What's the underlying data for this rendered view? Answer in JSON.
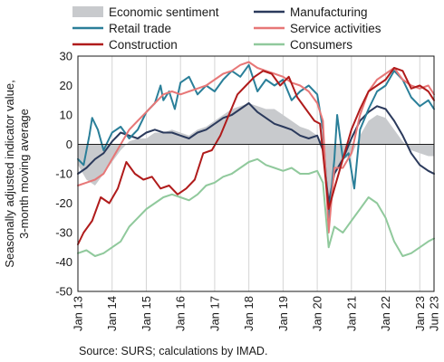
{
  "chart_data": {
    "type": "line",
    "ylabel_lines": [
      "Seasonally adjusted indicator value,",
      "3-month moving average"
    ],
    "source": "Source: SURS; calculations by IMAD.",
    "ylim": [
      -50,
      30
    ],
    "yticks": [
      30,
      20,
      10,
      0,
      -10,
      -20,
      -30,
      -40,
      -50
    ],
    "xlim": [
      "2013-01",
      "2023-06"
    ],
    "xticks": [
      {
        "label": "Jan 13",
        "date": "2013-01"
      },
      {
        "label": "Jan 14",
        "date": "2014-01"
      },
      {
        "label": "Jan 15",
        "date": "2015-01"
      },
      {
        "label": "Jan 16",
        "date": "2016-01"
      },
      {
        "label": "Jan 17",
        "date": "2017-01"
      },
      {
        "label": "Jan 18",
        "date": "2018-01"
      },
      {
        "label": "Jan 19",
        "date": "2019-01"
      },
      {
        "label": "Jan 20",
        "date": "2020-01"
      },
      {
        "label": "Jan 21",
        "date": "2021-01"
      },
      {
        "label": "Jan 22",
        "date": "2022-01"
      },
      {
        "label": "Jan 23",
        "date": "2023-01"
      },
      {
        "label": "Jun 23",
        "date": "2023-06"
      }
    ],
    "grid": "vertical",
    "legend_placement": "top",
    "series": [
      {
        "name": "Economic sentiment",
        "kind": "area",
        "color": "#c8cacd",
        "points": [
          [
            "2013-01",
            -7
          ],
          [
            "2013-04",
            -12
          ],
          [
            "2013-07",
            -14
          ],
          [
            "2013-10",
            -10
          ],
          [
            "2014-01",
            -6
          ],
          [
            "2014-04",
            -2
          ],
          [
            "2014-07",
            1
          ],
          [
            "2014-10",
            2
          ],
          [
            "2015-01",
            2
          ],
          [
            "2015-04",
            4
          ],
          [
            "2015-07",
            4
          ],
          [
            "2015-10",
            5
          ],
          [
            "2016-01",
            4
          ],
          [
            "2016-04",
            3
          ],
          [
            "2016-07",
            5
          ],
          [
            "2016-10",
            6
          ],
          [
            "2017-01",
            8
          ],
          [
            "2017-04",
            10
          ],
          [
            "2017-07",
            12
          ],
          [
            "2017-10",
            13
          ],
          [
            "2018-01",
            14
          ],
          [
            "2018-04",
            13
          ],
          [
            "2018-07",
            12
          ],
          [
            "2018-10",
            12
          ],
          [
            "2019-01",
            10
          ],
          [
            "2019-04",
            8
          ],
          [
            "2019-07",
            6
          ],
          [
            "2019-10",
            5
          ],
          [
            "2020-01",
            3
          ],
          [
            "2020-03",
            0
          ],
          [
            "2020-05",
            -30
          ],
          [
            "2020-07",
            -10
          ],
          [
            "2020-10",
            -5
          ],
          [
            "2021-01",
            -4
          ],
          [
            "2021-04",
            3
          ],
          [
            "2021-07",
            8
          ],
          [
            "2021-10",
            10
          ],
          [
            "2022-01",
            9
          ],
          [
            "2022-04",
            5
          ],
          [
            "2022-07",
            1
          ],
          [
            "2022-10",
            -2
          ],
          [
            "2023-01",
            -3
          ],
          [
            "2023-04",
            -4
          ],
          [
            "2023-06",
            -4
          ]
        ]
      },
      {
        "name": "Manufacturing",
        "kind": "line",
        "color": "#2b3a5c",
        "points": [
          [
            "2013-01",
            -10
          ],
          [
            "2013-04",
            -8
          ],
          [
            "2013-07",
            -5
          ],
          [
            "2013-10",
            -3
          ],
          [
            "2014-01",
            1
          ],
          [
            "2014-04",
            4
          ],
          [
            "2014-07",
            3
          ],
          [
            "2014-10",
            2
          ],
          [
            "2015-01",
            4
          ],
          [
            "2015-04",
            5
          ],
          [
            "2015-07",
            4
          ],
          [
            "2015-10",
            4
          ],
          [
            "2016-01",
            3
          ],
          [
            "2016-04",
            2
          ],
          [
            "2016-07",
            4
          ],
          [
            "2016-10",
            5
          ],
          [
            "2017-01",
            7
          ],
          [
            "2017-04",
            9
          ],
          [
            "2017-07",
            10
          ],
          [
            "2017-10",
            12
          ],
          [
            "2018-01",
            14
          ],
          [
            "2018-04",
            11
          ],
          [
            "2018-07",
            9
          ],
          [
            "2018-10",
            7
          ],
          [
            "2019-01",
            6
          ],
          [
            "2019-04",
            5
          ],
          [
            "2019-07",
            3
          ],
          [
            "2019-10",
            2
          ],
          [
            "2020-01",
            3
          ],
          [
            "2020-03",
            -2
          ],
          [
            "2020-05",
            -20
          ],
          [
            "2020-07",
            -10
          ],
          [
            "2020-10",
            -5
          ],
          [
            "2021-01",
            2
          ],
          [
            "2021-04",
            8
          ],
          [
            "2021-07",
            11
          ],
          [
            "2021-10",
            13
          ],
          [
            "2022-01",
            12
          ],
          [
            "2022-04",
            8
          ],
          [
            "2022-07",
            3
          ],
          [
            "2022-10",
            -3
          ],
          [
            "2023-01",
            -7
          ],
          [
            "2023-04",
            -9
          ],
          [
            "2023-06",
            -10
          ]
        ]
      },
      {
        "name": "Retail trade",
        "kind": "line",
        "color": "#2a7f99",
        "points": [
          [
            "2013-01",
            -5
          ],
          [
            "2013-03",
            -7
          ],
          [
            "2013-05",
            3
          ],
          [
            "2013-06",
            9
          ],
          [
            "2013-08",
            5
          ],
          [
            "2013-10",
            -2
          ],
          [
            "2014-01",
            4
          ],
          [
            "2014-04",
            6
          ],
          [
            "2014-07",
            2
          ],
          [
            "2014-10",
            5
          ],
          [
            "2015-01",
            11
          ],
          [
            "2015-04",
            14
          ],
          [
            "2015-06",
            20
          ],
          [
            "2015-07",
            15
          ],
          [
            "2015-09",
            18
          ],
          [
            "2015-11",
            12
          ],
          [
            "2016-01",
            21
          ],
          [
            "2016-04",
            23
          ],
          [
            "2016-07",
            17
          ],
          [
            "2016-10",
            20
          ],
          [
            "2017-01",
            18
          ],
          [
            "2017-04",
            22
          ],
          [
            "2017-07",
            25
          ],
          [
            "2017-10",
            23
          ],
          [
            "2018-01",
            27
          ],
          [
            "2018-04",
            18
          ],
          [
            "2018-07",
            22
          ],
          [
            "2018-10",
            20
          ],
          [
            "2019-01",
            22
          ],
          [
            "2019-04",
            15
          ],
          [
            "2019-07",
            18
          ],
          [
            "2019-10",
            20
          ],
          [
            "2020-01",
            17
          ],
          [
            "2020-03",
            5
          ],
          [
            "2020-05",
            -25
          ],
          [
            "2020-07",
            -5
          ],
          [
            "2020-08",
            10
          ],
          [
            "2020-10",
            -5
          ],
          [
            "2020-12",
            -3
          ],
          [
            "2021-02",
            -15
          ],
          [
            "2021-04",
            5
          ],
          [
            "2021-07",
            12
          ],
          [
            "2021-10",
            18
          ],
          [
            "2022-01",
            20
          ],
          [
            "2022-04",
            25
          ],
          [
            "2022-07",
            22
          ],
          [
            "2022-10",
            16
          ],
          [
            "2023-01",
            13
          ],
          [
            "2023-04",
            15
          ],
          [
            "2023-06",
            12
          ]
        ]
      },
      {
        "name": "Service activities",
        "kind": "line",
        "color": "#e77777",
        "points": [
          [
            "2013-01",
            -14
          ],
          [
            "2013-04",
            -13
          ],
          [
            "2013-07",
            -12
          ],
          [
            "2013-10",
            -10
          ],
          [
            "2014-01",
            -5
          ],
          [
            "2014-04",
            0
          ],
          [
            "2014-07",
            5
          ],
          [
            "2014-10",
            8
          ],
          [
            "2015-01",
            11
          ],
          [
            "2015-04",
            14
          ],
          [
            "2015-07",
            17
          ],
          [
            "2015-10",
            18
          ],
          [
            "2016-01",
            17
          ],
          [
            "2016-04",
            18
          ],
          [
            "2016-07",
            19
          ],
          [
            "2016-10",
            20
          ],
          [
            "2017-01",
            22
          ],
          [
            "2017-04",
            24
          ],
          [
            "2017-07",
            25
          ],
          [
            "2017-10",
            27
          ],
          [
            "2018-01",
            28
          ],
          [
            "2018-04",
            26
          ],
          [
            "2018-07",
            25
          ],
          [
            "2018-10",
            24
          ],
          [
            "2019-01",
            23
          ],
          [
            "2019-04",
            21
          ],
          [
            "2019-07",
            20
          ],
          [
            "2019-10",
            18
          ],
          [
            "2020-01",
            14
          ],
          [
            "2020-03",
            8
          ],
          [
            "2020-05",
            -30
          ],
          [
            "2020-07",
            -8
          ],
          [
            "2020-10",
            -8
          ],
          [
            "2021-01",
            -3
          ],
          [
            "2021-04",
            10
          ],
          [
            "2021-07",
            18
          ],
          [
            "2021-10",
            22
          ],
          [
            "2022-01",
            24
          ],
          [
            "2022-04",
            26
          ],
          [
            "2022-07",
            22
          ],
          [
            "2022-10",
            20
          ],
          [
            "2023-01",
            19
          ],
          [
            "2023-04",
            20
          ],
          [
            "2023-06",
            17
          ]
        ]
      },
      {
        "name": "Construction",
        "kind": "line",
        "color": "#b01b1b",
        "points": [
          [
            "2013-01",
            -34
          ],
          [
            "2013-03",
            -30
          ],
          [
            "2013-06",
            -26
          ],
          [
            "2013-09",
            -18
          ],
          [
            "2013-12",
            -20
          ],
          [
            "2014-03",
            -15
          ],
          [
            "2014-06",
            -6
          ],
          [
            "2014-09",
            -10
          ],
          [
            "2014-12",
            -12
          ],
          [
            "2015-03",
            -11
          ],
          [
            "2015-06",
            -15
          ],
          [
            "2015-09",
            -14
          ],
          [
            "2015-12",
            -17
          ],
          [
            "2016-03",
            -15
          ],
          [
            "2016-06",
            -12
          ],
          [
            "2016-09",
            -3
          ],
          [
            "2016-12",
            -2
          ],
          [
            "2017-03",
            3
          ],
          [
            "2017-06",
            10
          ],
          [
            "2017-09",
            17
          ],
          [
            "2017-12",
            20
          ],
          [
            "2018-03",
            23
          ],
          [
            "2018-06",
            25
          ],
          [
            "2018-09",
            24
          ],
          [
            "2018-12",
            20
          ],
          [
            "2019-03",
            23
          ],
          [
            "2019-06",
            16
          ],
          [
            "2019-09",
            12
          ],
          [
            "2019-12",
            8
          ],
          [
            "2020-02",
            7
          ],
          [
            "2020-05",
            -22
          ],
          [
            "2020-07",
            -15
          ],
          [
            "2020-10",
            -5
          ],
          [
            "2021-01",
            5
          ],
          [
            "2021-04",
            12
          ],
          [
            "2021-07",
            18
          ],
          [
            "2021-10",
            20
          ],
          [
            "2022-01",
            22
          ],
          [
            "2022-04",
            26
          ],
          [
            "2022-07",
            25
          ],
          [
            "2022-10",
            19
          ],
          [
            "2023-01",
            20
          ],
          [
            "2023-04",
            18
          ],
          [
            "2023-06",
            15
          ]
        ]
      },
      {
        "name": "Consumers",
        "kind": "line",
        "color": "#90c99c",
        "points": [
          [
            "2013-01",
            -37
          ],
          [
            "2013-04",
            -36
          ],
          [
            "2013-07",
            -38
          ],
          [
            "2013-10",
            -37
          ],
          [
            "2014-01",
            -35
          ],
          [
            "2014-04",
            -33
          ],
          [
            "2014-07",
            -28
          ],
          [
            "2014-10",
            -25
          ],
          [
            "2015-01",
            -22
          ],
          [
            "2015-04",
            -20
          ],
          [
            "2015-07",
            -18
          ],
          [
            "2015-10",
            -17
          ],
          [
            "2016-01",
            -18
          ],
          [
            "2016-04",
            -19
          ],
          [
            "2016-07",
            -17
          ],
          [
            "2016-10",
            -14
          ],
          [
            "2017-01",
            -13
          ],
          [
            "2017-04",
            -11
          ],
          [
            "2017-07",
            -10
          ],
          [
            "2017-10",
            -8
          ],
          [
            "2018-01",
            -6
          ],
          [
            "2018-04",
            -5
          ],
          [
            "2018-07",
            -7
          ],
          [
            "2018-10",
            -8
          ],
          [
            "2019-01",
            -9
          ],
          [
            "2019-04",
            -8
          ],
          [
            "2019-07",
            -10
          ],
          [
            "2019-10",
            -10
          ],
          [
            "2020-01",
            -9
          ],
          [
            "2020-03",
            -13
          ],
          [
            "2020-05",
            -35
          ],
          [
            "2020-07",
            -28
          ],
          [
            "2020-10",
            -30
          ],
          [
            "2021-01",
            -26
          ],
          [
            "2021-04",
            -22
          ],
          [
            "2021-07",
            -18
          ],
          [
            "2021-10",
            -20
          ],
          [
            "2022-01",
            -25
          ],
          [
            "2022-04",
            -33
          ],
          [
            "2022-07",
            -38
          ],
          [
            "2022-10",
            -37
          ],
          [
            "2023-01",
            -35
          ],
          [
            "2023-04",
            -33
          ],
          [
            "2023-06",
            -32
          ]
        ]
      }
    ]
  }
}
